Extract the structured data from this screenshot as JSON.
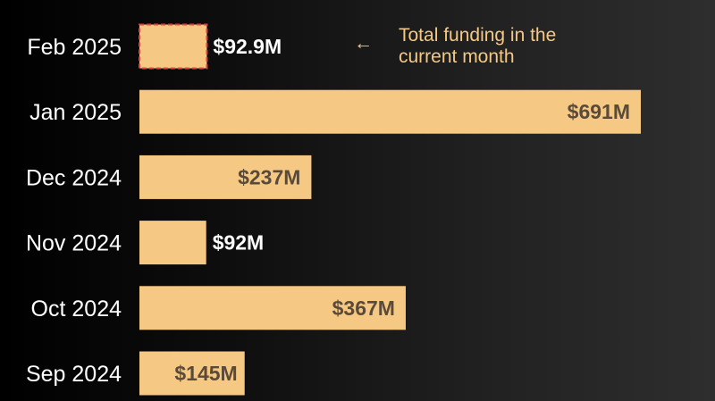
{
  "chart_data": {
    "type": "bar",
    "orientation": "horizontal",
    "categories": [
      "Feb 2025",
      "Jan 2025",
      "Dec 2024",
      "Nov 2024",
      "Oct 2024",
      "Sep 2024"
    ],
    "values": [
      92.9,
      691,
      237,
      92,
      367,
      145
    ],
    "value_labels": [
      "$92.9M",
      "$691M",
      "$237M",
      "$92M",
      "$367M",
      "$145M"
    ],
    "unit": "$M",
    "highlighted_category": "Feb 2025",
    "annotation": {
      "arrow": "←",
      "line1": "Total funding in the",
      "line2": "current month"
    },
    "xlim": [
      0,
      691
    ],
    "grid": false,
    "legend": "none"
  },
  "colors": {
    "bar": "#f5c983",
    "highlight_border": "#e0443a",
    "label_inside": "#5a4a3a",
    "label_outside": "#ffffff",
    "category_text": "#ffffff",
    "annotation": "#f5c983"
  }
}
